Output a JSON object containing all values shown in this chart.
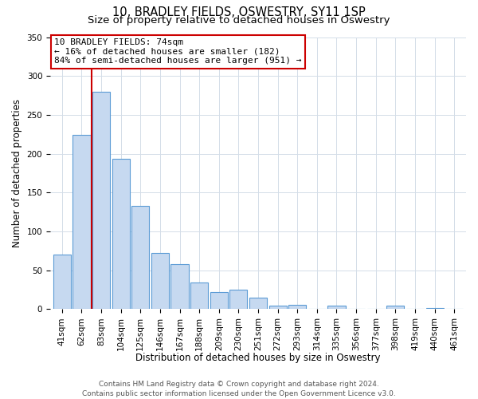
{
  "title": "10, BRADLEY FIELDS, OSWESTRY, SY11 1SP",
  "subtitle": "Size of property relative to detached houses in Oswestry",
  "xlabel": "Distribution of detached houses by size in Oswestry",
  "ylabel": "Number of detached properties",
  "categories": [
    "41sqm",
    "62sqm",
    "83sqm",
    "104sqm",
    "125sqm",
    "146sqm",
    "167sqm",
    "188sqm",
    "209sqm",
    "230sqm",
    "251sqm",
    "272sqm",
    "293sqm",
    "314sqm",
    "335sqm",
    "356sqm",
    "377sqm",
    "398sqm",
    "419sqm",
    "440sqm",
    "461sqm"
  ],
  "values": [
    70,
    224,
    280,
    193,
    133,
    72,
    58,
    34,
    22,
    25,
    15,
    4,
    6,
    0,
    5,
    0,
    0,
    4,
    0,
    1,
    0
  ],
  "bar_color": "#c6d9f0",
  "bar_edge_color": "#5b9bd5",
  "marker_color": "#cc0000",
  "ylim": [
    0,
    350
  ],
  "yticks": [
    0,
    50,
    100,
    150,
    200,
    250,
    300,
    350
  ],
  "annotation_line1": "10 BRADLEY FIELDS: 74sqm",
  "annotation_line2": "← 16% of detached houses are smaller (182)",
  "annotation_line3": "84% of semi-detached houses are larger (951) →",
  "annotation_box_color": "#ffffff",
  "annotation_box_edge": "#cc0000",
  "footer_line1": "Contains HM Land Registry data © Crown copyright and database right 2024.",
  "footer_line2": "Contains public sector information licensed under the Open Government Licence v3.0.",
  "bg_color": "#ffffff",
  "grid_color": "#d4dde8",
  "title_fontsize": 10.5,
  "subtitle_fontsize": 9.5,
  "axis_label_fontsize": 8.5,
  "tick_fontsize": 7.5,
  "annotation_fontsize": 8,
  "footer_fontsize": 6.5
}
